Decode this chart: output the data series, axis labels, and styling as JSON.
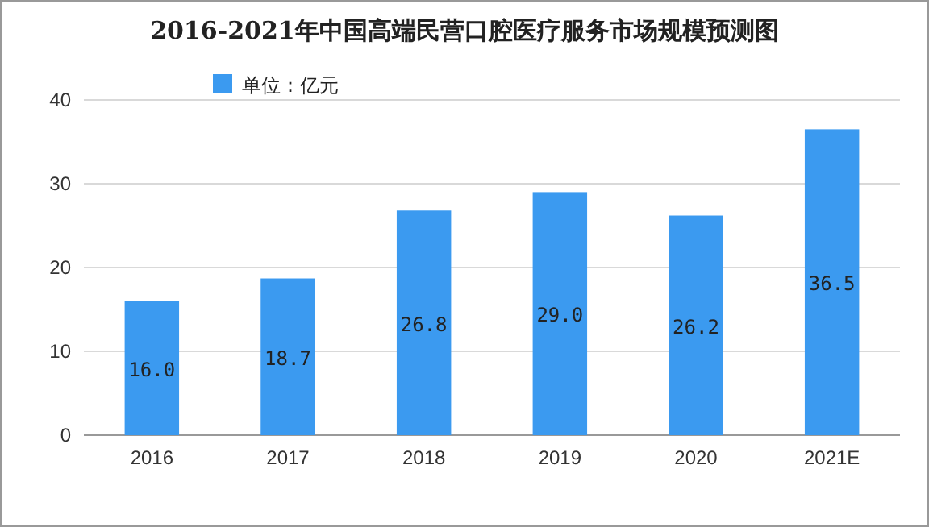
{
  "chart_data": {
    "type": "bar",
    "title": "2016-2021年中国高端民营口腔医疗服务市场规模预测图",
    "categories": [
      "2016",
      "2017",
      "2018",
      "2019",
      "2020",
      "2021E"
    ],
    "series": [
      {
        "name": "单位：亿元",
        "color": "#3b9af0",
        "values": [
          16.0,
          18.7,
          26.8,
          29.0,
          26.2,
          36.5
        ],
        "value_labels": [
          "16.0",
          "18.7",
          "26.8",
          "29.0",
          "26.2",
          "36.5"
        ]
      }
    ],
    "ylim": [
      0,
      40
    ],
    "yticks": [
      0,
      10,
      20,
      30,
      40
    ],
    "grid": "y",
    "legend": "top left"
  }
}
